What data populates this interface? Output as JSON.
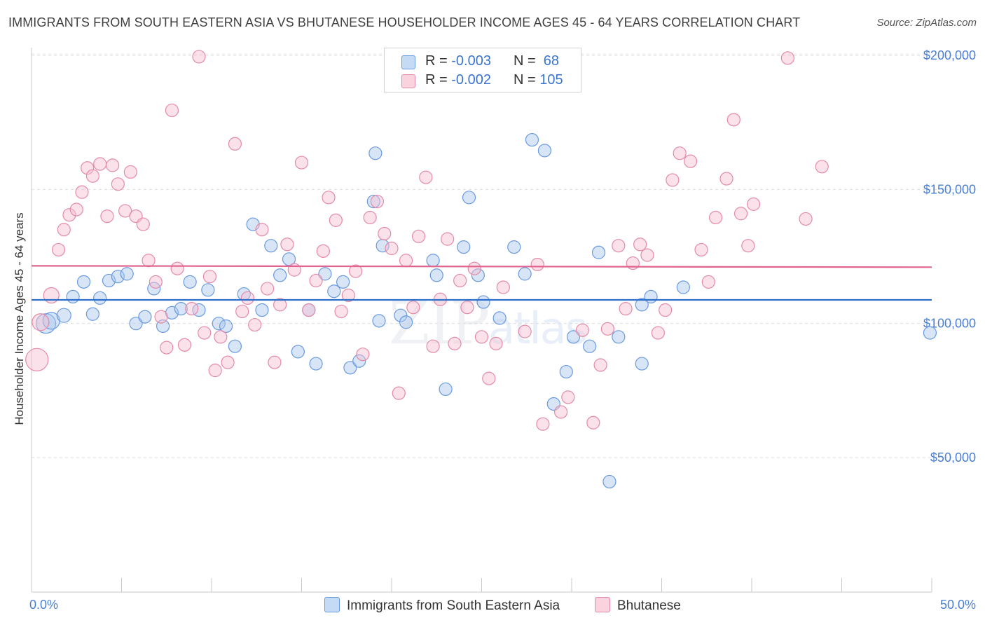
{
  "title": "IMMIGRANTS FROM SOUTH EASTERN ASIA VS BHUTANESE HOUSEHOLDER INCOME AGES 45 - 64 YEARS CORRELATION CHART",
  "source": "Source: ZipAtlas.com",
  "watermark": {
    "zip": "ZIP",
    "atlas": "atlas"
  },
  "stats": [
    {
      "r_label": "R = ",
      "r_value": "-0.003",
      "n_label": "N = ",
      "n_value": " 68",
      "color": "#a8c8f0",
      "border": "#5b8fd8"
    },
    {
      "r_label": "R = ",
      "r_value": "-0.002",
      "n_label": "N = ",
      "n_value": "105",
      "color": "#f8c0d0",
      "border": "#e68aa6"
    }
  ],
  "legend": [
    {
      "label": "Immigrants from South Eastern Asia",
      "color": "#c5dbf5",
      "border": "#6a9ae0"
    },
    {
      "label": "Bhutanese",
      "color": "#fbd3df",
      "border": "#e48aa8"
    }
  ],
  "chart_data": {
    "type": "scatter",
    "title": "IMMIGRANTS FROM SOUTH EASTERN ASIA VS BHUTANESE HOUSEHOLDER INCOME AGES 45 - 64 YEARS CORRELATION CHART",
    "xlabel": "",
    "ylabel": "Householder Income Ages 45 - 64 years",
    "xlim": [
      0,
      50
    ],
    "ylim": [
      0,
      205000
    ],
    "x_tick_labels": [
      "0.0%",
      "50.0%"
    ],
    "y_ticks": [
      50000,
      100000,
      150000,
      200000
    ],
    "y_tick_labels": [
      "$50,000",
      "$100,000",
      "$150,000",
      "$200,000"
    ],
    "grid": true,
    "legend_position": "bottom-center",
    "series": [
      {
        "name": "Immigrants from South Eastern Asia",
        "color": "#6a9ae0",
        "fill": "#a9c6ee",
        "trend": [
          [
            0,
            108800
          ],
          [
            50,
            108800
          ]
        ],
        "points": [
          [
            0.8,
            100000,
            14
          ],
          [
            1.1,
            101000,
            12
          ],
          [
            1.8,
            103000,
            10
          ],
          [
            2.3,
            110000,
            9
          ],
          [
            2.9,
            115500,
            9
          ],
          [
            3.4,
            103500,
            9
          ],
          [
            3.8,
            109500,
            9
          ],
          [
            4.3,
            116000,
            9
          ],
          [
            4.8,
            117500,
            9
          ],
          [
            5.3,
            118500,
            9
          ],
          [
            5.8,
            100000,
            9
          ],
          [
            6.3,
            102500,
            9
          ],
          [
            6.8,
            113000,
            9
          ],
          [
            7.3,
            99000,
            9
          ],
          [
            7.8,
            104000,
            9
          ],
          [
            8.3,
            105500,
            9
          ],
          [
            8.8,
            115500,
            9
          ],
          [
            9.3,
            105000,
            9
          ],
          [
            9.8,
            112500,
            9
          ],
          [
            10.4,
            100000,
            9
          ],
          [
            10.8,
            99000,
            9
          ],
          [
            11.3,
            91500,
            9
          ],
          [
            11.8,
            111000,
            9
          ],
          [
            12.3,
            137000,
            9
          ],
          [
            12.8,
            105000,
            9
          ],
          [
            13.3,
            129000,
            9
          ],
          [
            13.8,
            118000,
            9
          ],
          [
            14.3,
            124000,
            9
          ],
          [
            14.8,
            89500,
            9
          ],
          [
            15.4,
            105000,
            9
          ],
          [
            15.8,
            85000,
            9
          ],
          [
            16.3,
            118500,
            9
          ],
          [
            16.8,
            112000,
            9
          ],
          [
            17.3,
            115500,
            9
          ],
          [
            17.7,
            83500,
            9
          ],
          [
            18.2,
            86000,
            9
          ],
          [
            19.0,
            145500,
            9
          ],
          [
            19.1,
            163500,
            9
          ],
          [
            19.3,
            101000,
            9
          ],
          [
            19.5,
            129000,
            9
          ],
          [
            20.5,
            103000,
            9
          ],
          [
            20.8,
            100500,
            9
          ],
          [
            22.3,
            123500,
            9
          ],
          [
            22.5,
            118000,
            9
          ],
          [
            23.0,
            75500,
            9
          ],
          [
            24.0,
            128500,
            9
          ],
          [
            24.3,
            147000,
            9
          ],
          [
            24.8,
            118000,
            9
          ],
          [
            25.1,
            108000,
            9
          ],
          [
            26.0,
            102000,
            9
          ],
          [
            26.8,
            128500,
            9
          ],
          [
            27.4,
            118500,
            9
          ],
          [
            27.8,
            168500,
            9
          ],
          [
            28.5,
            164500,
            9
          ],
          [
            29.0,
            70000,
            9
          ],
          [
            29.7,
            82000,
            9
          ],
          [
            30.1,
            95000,
            9
          ],
          [
            31.0,
            91500,
            9
          ],
          [
            31.5,
            126500,
            9
          ],
          [
            32.1,
            41000,
            9
          ],
          [
            32.6,
            95000,
            9
          ],
          [
            33.9,
            85000,
            9
          ],
          [
            33.9,
            107000,
            9
          ],
          [
            34.4,
            110000,
            9
          ],
          [
            36.2,
            113500,
            9
          ],
          [
            49.9,
            96500,
            9
          ]
        ]
      },
      {
        "name": "Bhutanese",
        "color": "#e48aa8",
        "fill": "#f6bfd0",
        "trend": [
          [
            0,
            121500
          ],
          [
            50,
            121000
          ]
        ],
        "points": [
          [
            0.3,
            86500,
            16
          ],
          [
            0.5,
            100500,
            12
          ],
          [
            1.1,
            110500,
            11
          ],
          [
            1.5,
            127500,
            9
          ],
          [
            1.8,
            135000,
            9
          ],
          [
            2.1,
            140500,
            9
          ],
          [
            2.5,
            142500,
            9
          ],
          [
            2.8,
            149000,
            9
          ],
          [
            3.1,
            158000,
            9
          ],
          [
            3.4,
            155000,
            9
          ],
          [
            3.8,
            159500,
            9
          ],
          [
            4.2,
            140000,
            9
          ],
          [
            4.5,
            159000,
            9
          ],
          [
            4.8,
            152000,
            9
          ],
          [
            5.2,
            142000,
            9
          ],
          [
            5.5,
            156500,
            9
          ],
          [
            5.8,
            140000,
            9
          ],
          [
            6.2,
            137000,
            9
          ],
          [
            6.5,
            123500,
            9
          ],
          [
            6.9,
            115500,
            9
          ],
          [
            7.2,
            102500,
            9
          ],
          [
            7.5,
            91000,
            9
          ],
          [
            7.8,
            179500,
            9
          ],
          [
            8.1,
            120500,
            9
          ],
          [
            8.5,
            92000,
            9
          ],
          [
            8.9,
            105500,
            9
          ],
          [
            9.3,
            199500,
            9
          ],
          [
            9.6,
            96500,
            9
          ],
          [
            9.9,
            117500,
            9
          ],
          [
            10.2,
            82500,
            9
          ],
          [
            10.5,
            95000,
            9
          ],
          [
            10.9,
            85500,
            9
          ],
          [
            11.3,
            167000,
            9
          ],
          [
            11.7,
            104500,
            9
          ],
          [
            12.0,
            109500,
            9
          ],
          [
            12.4,
            99500,
            9
          ],
          [
            12.8,
            135000,
            9
          ],
          [
            13.1,
            113000,
            9
          ],
          [
            13.5,
            85500,
            9
          ],
          [
            13.8,
            107000,
            9
          ],
          [
            14.2,
            129500,
            9
          ],
          [
            14.6,
            120000,
            9
          ],
          [
            15.0,
            160000,
            9
          ],
          [
            15.4,
            105000,
            9
          ],
          [
            15.8,
            116000,
            9
          ],
          [
            16.2,
            127000,
            9
          ],
          [
            16.5,
            147000,
            9
          ],
          [
            16.9,
            138500,
            9
          ],
          [
            17.2,
            104500,
            9
          ],
          [
            17.6,
            110500,
            9
          ],
          [
            18.0,
            119500,
            9
          ],
          [
            18.4,
            88500,
            9
          ],
          [
            18.8,
            139500,
            9
          ],
          [
            19.2,
            145500,
            9
          ],
          [
            19.6,
            133500,
            9
          ],
          [
            20.0,
            128000,
            9
          ],
          [
            20.4,
            74000,
            9
          ],
          [
            20.8,
            123500,
            9
          ],
          [
            21.2,
            106000,
            9
          ],
          [
            21.5,
            132500,
            9
          ],
          [
            21.9,
            154500,
            9
          ],
          [
            22.3,
            91500,
            9
          ],
          [
            22.7,
            109000,
            9
          ],
          [
            23.1,
            131500,
            9
          ],
          [
            23.5,
            92500,
            9
          ],
          [
            23.8,
            116000,
            9
          ],
          [
            24.2,
            106000,
            9
          ],
          [
            24.6,
            120500,
            9
          ],
          [
            25.0,
            95000,
            9
          ],
          [
            25.4,
            79500,
            9
          ],
          [
            25.8,
            92500,
            9
          ],
          [
            26.2,
            113500,
            9
          ],
          [
            27.4,
            97000,
            9
          ],
          [
            28.1,
            122000,
            9
          ],
          [
            28.4,
            62500,
            9
          ],
          [
            29.4,
            67000,
            9
          ],
          [
            29.8,
            72500,
            9
          ],
          [
            30.6,
            97500,
            9
          ],
          [
            31.2,
            63000,
            9
          ],
          [
            31.6,
            84500,
            9
          ],
          [
            32.0,
            98000,
            9
          ],
          [
            32.6,
            129000,
            9
          ],
          [
            33.0,
            105500,
            9
          ],
          [
            33.4,
            122500,
            9
          ],
          [
            33.8,
            129500,
            9
          ],
          [
            34.2,
            125500,
            9
          ],
          [
            34.8,
            96500,
            9
          ],
          [
            35.2,
            105000,
            9
          ],
          [
            35.6,
            153500,
            9
          ],
          [
            36.0,
            163500,
            9
          ],
          [
            36.6,
            160500,
            9
          ],
          [
            37.2,
            127500,
            9
          ],
          [
            37.6,
            115500,
            9
          ],
          [
            38.0,
            139500,
            9
          ],
          [
            38.6,
            154000,
            9
          ],
          [
            39.0,
            176000,
            9
          ],
          [
            39.4,
            141000,
            9
          ],
          [
            39.8,
            129000,
            9
          ],
          [
            40.1,
            144500,
            9
          ],
          [
            42.0,
            199000,
            9
          ],
          [
            43.0,
            139000,
            9
          ],
          [
            43.9,
            158500,
            9
          ]
        ]
      }
    ]
  }
}
